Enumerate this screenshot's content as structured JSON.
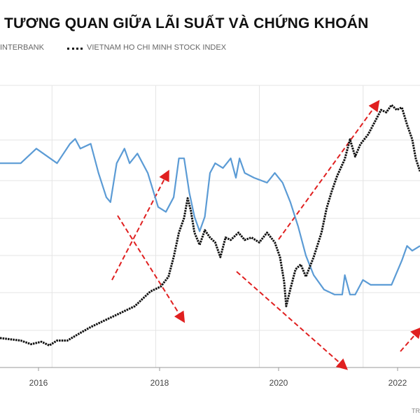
{
  "chart_data": {
    "type": "line",
    "title": "TƯƠNG QUAN GIỮA LÃI SUẤT VÀ CHỨNG KHOÁN",
    "x_ticks": [
      "2016",
      "2018",
      "2020",
      "2022"
    ],
    "legend_placement": "top-left",
    "grid": {
      "horizontal": true,
      "vertical": true
    },
    "series": [
      {
        "name": "INTERBANK",
        "color": "#5b9bd5",
        "style": "solid",
        "points": [
          [
            2014.7,
            5.2
          ],
          [
            2015.1,
            5.2
          ],
          [
            2015.4,
            5.5
          ],
          [
            2015.8,
            5.2
          ],
          [
            2016.05,
            5.6
          ],
          [
            2016.15,
            5.7
          ],
          [
            2016.25,
            5.5
          ],
          [
            2016.45,
            5.6
          ],
          [
            2016.6,
            5.0
          ],
          [
            2016.75,
            4.5
          ],
          [
            2016.83,
            4.4
          ],
          [
            2016.95,
            5.2
          ],
          [
            2017.1,
            5.5
          ],
          [
            2017.2,
            5.2
          ],
          [
            2017.35,
            5.4
          ],
          [
            2017.55,
            5.0
          ],
          [
            2017.75,
            4.3
          ],
          [
            2017.9,
            4.2
          ],
          [
            2018.05,
            4.5
          ],
          [
            2018.15,
            5.3
          ],
          [
            2018.25,
            5.3
          ],
          [
            2018.35,
            4.6
          ],
          [
            2018.45,
            4.1
          ],
          [
            2018.55,
            3.8
          ],
          [
            2018.65,
            4.1
          ],
          [
            2018.75,
            5.0
          ],
          [
            2018.85,
            5.2
          ],
          [
            2019.0,
            5.1
          ],
          [
            2019.15,
            5.3
          ],
          [
            2019.25,
            4.9
          ],
          [
            2019.32,
            5.3
          ],
          [
            2019.42,
            5.0
          ],
          [
            2019.6,
            4.9
          ],
          [
            2019.85,
            4.8
          ],
          [
            2020.0,
            5.0
          ],
          [
            2020.15,
            4.8
          ],
          [
            2020.3,
            4.4
          ],
          [
            2020.45,
            3.9
          ],
          [
            2020.6,
            3.3
          ],
          [
            2020.75,
            2.9
          ],
          [
            2020.95,
            2.6
          ],
          [
            2021.15,
            2.5
          ],
          [
            2021.3,
            2.5
          ],
          [
            2021.35,
            2.9
          ],
          [
            2021.45,
            2.5
          ],
          [
            2021.55,
            2.5
          ],
          [
            2021.7,
            2.8
          ],
          [
            2021.85,
            2.7
          ],
          [
            2022.1,
            2.7
          ],
          [
            2022.25,
            2.7
          ],
          [
            2022.45,
            3.2
          ],
          [
            2022.55,
            3.5
          ],
          [
            2022.65,
            3.4
          ],
          [
            2022.8,
            3.5
          ]
        ]
      },
      {
        "name": "VIETNAM HO CHI MINH STOCK INDEX",
        "color": "#111111",
        "style": "dotted",
        "points": [
          [
            2014.7,
            570
          ],
          [
            2014.9,
            565
          ],
          [
            2015.1,
            560
          ],
          [
            2015.3,
            545
          ],
          [
            2015.5,
            555
          ],
          [
            2015.65,
            540
          ],
          [
            2015.8,
            560
          ],
          [
            2016.0,
            560
          ],
          [
            2016.2,
            585
          ],
          [
            2016.45,
            615
          ],
          [
            2016.7,
            640
          ],
          [
            2016.9,
            660
          ],
          [
            2017.1,
            680
          ],
          [
            2017.3,
            700
          ],
          [
            2017.45,
            730
          ],
          [
            2017.6,
            760
          ],
          [
            2017.8,
            780
          ],
          [
            2017.95,
            820
          ],
          [
            2018.05,
            900
          ],
          [
            2018.15,
            1000
          ],
          [
            2018.25,
            1060
          ],
          [
            2018.32,
            1140
          ],
          [
            2018.38,
            1090
          ],
          [
            2018.45,
            1000
          ],
          [
            2018.55,
            950
          ],
          [
            2018.65,
            1010
          ],
          [
            2018.75,
            980
          ],
          [
            2018.85,
            960
          ],
          [
            2018.95,
            900
          ],
          [
            2019.05,
            980
          ],
          [
            2019.15,
            970
          ],
          [
            2019.3,
            1000
          ],
          [
            2019.42,
            970
          ],
          [
            2019.55,
            980
          ],
          [
            2019.7,
            960
          ],
          [
            2019.85,
            1000
          ],
          [
            2020.0,
            960
          ],
          [
            2020.1,
            900
          ],
          [
            2020.18,
            800
          ],
          [
            2020.22,
            700
          ],
          [
            2020.3,
            770
          ],
          [
            2020.4,
            850
          ],
          [
            2020.5,
            870
          ],
          [
            2020.6,
            820
          ],
          [
            2020.75,
            900
          ],
          [
            2020.9,
            1000
          ],
          [
            2021.0,
            1100
          ],
          [
            2021.1,
            1170
          ],
          [
            2021.2,
            1230
          ],
          [
            2021.35,
            1300
          ],
          [
            2021.45,
            1380
          ],
          [
            2021.55,
            1310
          ],
          [
            2021.65,
            1360
          ],
          [
            2021.8,
            1400
          ],
          [
            2021.95,
            1460
          ],
          [
            2022.05,
            1500
          ],
          [
            2022.15,
            1490
          ],
          [
            2022.25,
            1520
          ],
          [
            2022.35,
            1500
          ],
          [
            2022.45,
            1510
          ],
          [
            2022.55,
            1440
          ],
          [
            2022.65,
            1380
          ],
          [
            2022.72,
            1300
          ],
          [
            2022.8,
            1250
          ]
        ]
      }
    ]
  },
  "source_text": "TR"
}
